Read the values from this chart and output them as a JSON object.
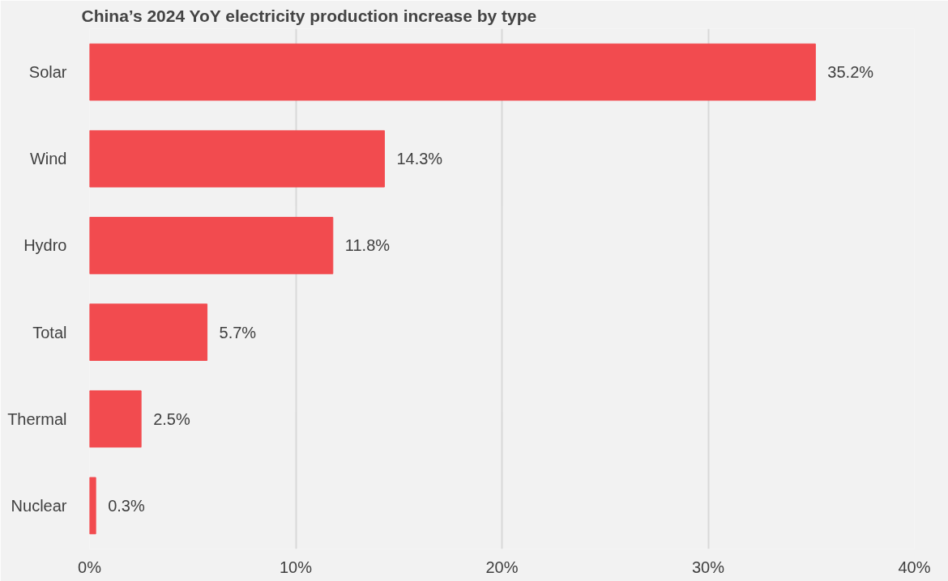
{
  "chart_data": {
    "type": "bar",
    "orientation": "horizontal",
    "title": "China’s 2024 YoY electricity production increase by type",
    "categories": [
      "Solar",
      "Wind",
      "Hydro",
      "Total",
      "Thermal",
      "Nuclear"
    ],
    "values": [
      35.2,
      14.3,
      11.8,
      5.7,
      2.5,
      0.3
    ],
    "value_labels": [
      "35.2%",
      "14.3%",
      "11.8%",
      "5.7%",
      "2.5%",
      "0.3%"
    ],
    "color": "#f24b4f",
    "xlim": [
      0,
      40
    ],
    "xticks": [
      {
        "value": 0,
        "label": "0%"
      },
      {
        "value": 10,
        "label": "10%"
      },
      {
        "value": 20,
        "label": "20%"
      },
      {
        "value": 30,
        "label": "30%"
      },
      {
        "value": 40,
        "label": "40%"
      }
    ],
    "grid": "x"
  }
}
